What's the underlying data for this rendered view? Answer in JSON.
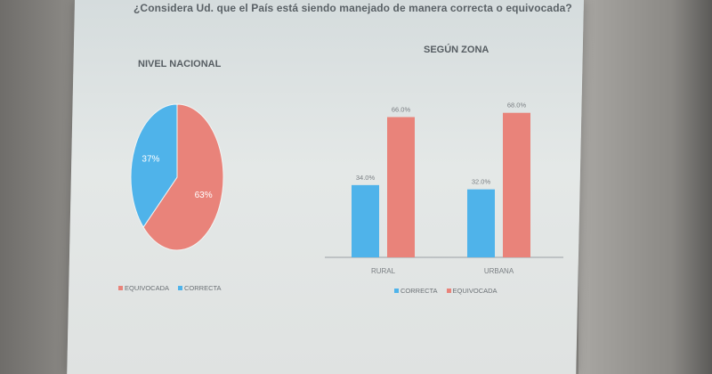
{
  "slide": {
    "question": "¿Considera Ud. que el País está siendo manejado de manera correcta o equivocada?",
    "colors": {
      "correcta": "#4fb3ea",
      "equivocada": "#e9837a",
      "axis": "#9aa0a4"
    }
  },
  "chart_data": [
    {
      "type": "pie",
      "title": "NIVEL NACIONAL",
      "labels": [
        "EQUIVOCADA",
        "CORRECTA"
      ],
      "values": [
        63,
        37
      ],
      "data_labels": [
        "63%",
        "37%"
      ],
      "legend": [
        "EQUIVOCADA",
        "CORRECTA"
      ],
      "legend_position": "bottom"
    },
    {
      "type": "bar",
      "title": "SEGÚN ZONA",
      "categories": [
        "RURAL",
        "URBANA"
      ],
      "series": [
        {
          "name": "CORRECTA",
          "values": [
            34.0,
            32.0
          ],
          "labels": [
            "34.0%",
            "32.0%"
          ]
        },
        {
          "name": "EQUIVOCADA",
          "values": [
            66.0,
            68.0
          ],
          "labels": [
            "66.0%",
            "68.0%"
          ]
        }
      ],
      "ylim": [
        0,
        75
      ],
      "grid": false,
      "legend_position": "bottom"
    }
  ]
}
